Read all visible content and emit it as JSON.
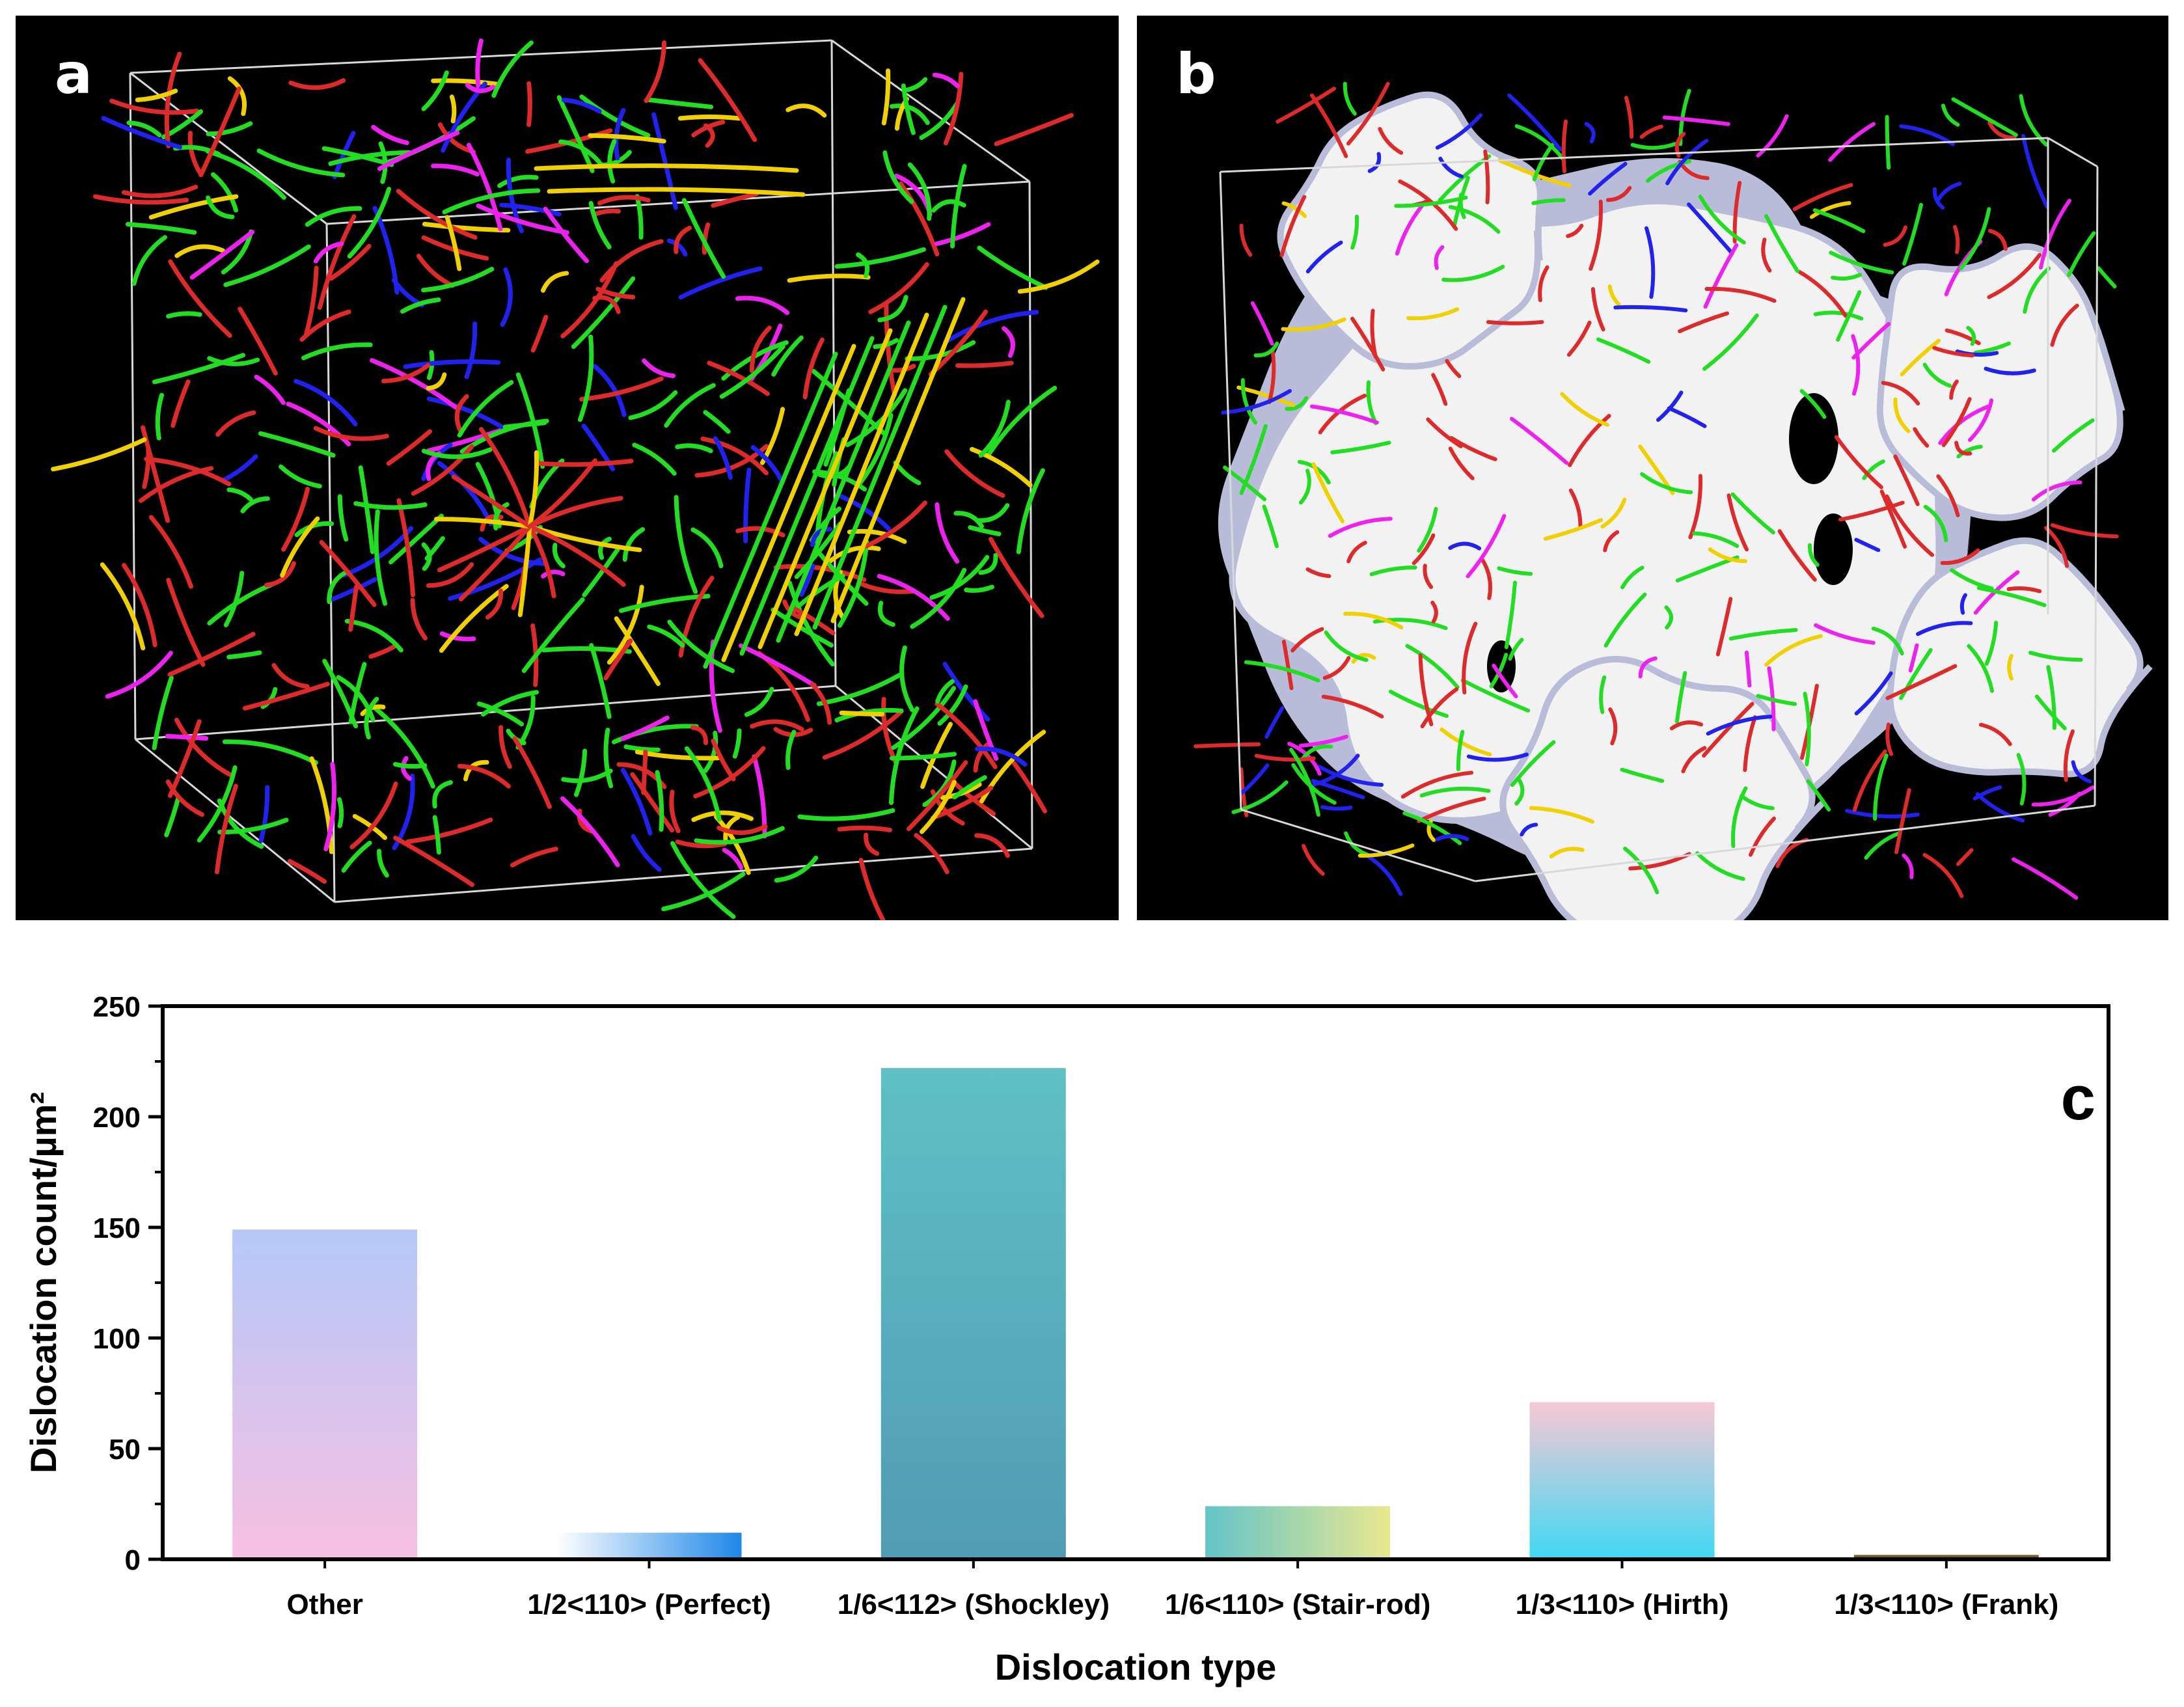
{
  "panels": {
    "a": {
      "label": "a"
    },
    "b": {
      "label": "b"
    }
  },
  "colors": {
    "green": "#22dd22",
    "red": "#dd2a2a",
    "yellow": "#f0d000",
    "magenta": "#ee22ee",
    "blue": "#2222ee",
    "box": "#d8d8d8",
    "void_fill": "#f2f2f2",
    "void_edge": "#b8bcd8"
  },
  "chart_data": {
    "type": "bar",
    "panel_label": "c",
    "categories": [
      "Other",
      "1/2<110> (Perfect)",
      "1/6<112> (Shockley)",
      "1/6<110> (Stair-rod)",
      "1/3<110> (Hirth)",
      "1/3<110> (Frank)"
    ],
    "values": [
      149,
      12,
      222,
      24,
      71,
      2
    ],
    "xlabel": "Dislocation type",
    "ylabel": "Dislocation count/µm²",
    "ylim": [
      0,
      250
    ],
    "yticks": [
      0,
      50,
      100,
      150,
      200,
      250
    ],
    "bar_colors": [
      [
        "#b4c8f8",
        "#f8c0e2"
      ],
      [
        "#ffffff",
        "#1e88e8"
      ],
      [
        "#60c0c4",
        "#509cb4"
      ],
      [
        "#64c4c8",
        "#e8e890"
      ],
      [
        "#f8c8d4",
        "#40d8f4"
      ],
      [
        "#8a6a40",
        "#5a3a1a"
      ]
    ],
    "grid": false
  }
}
